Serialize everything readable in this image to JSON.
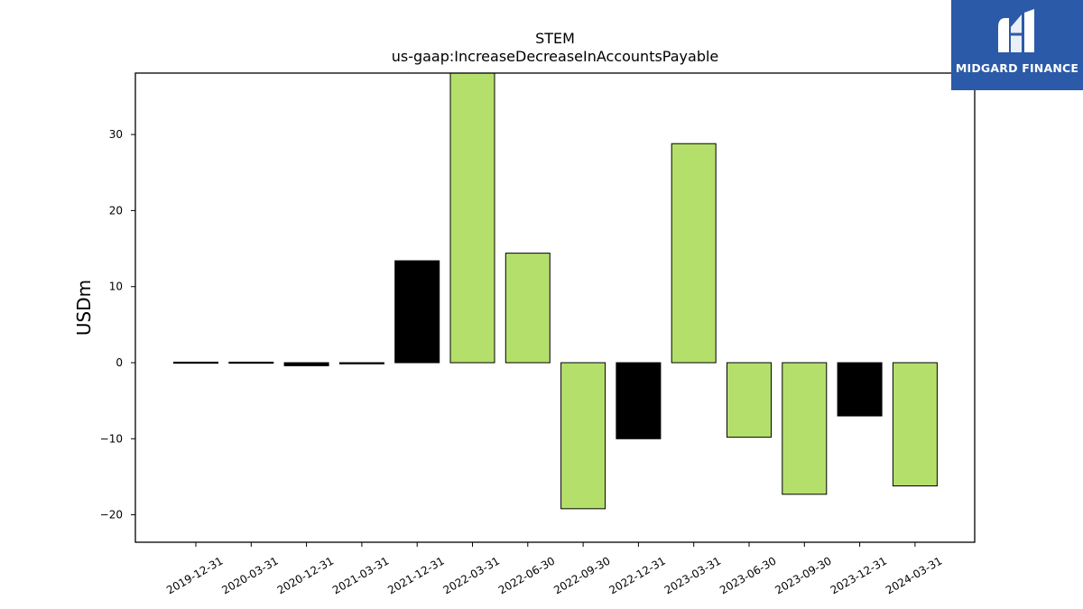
{
  "logo": {
    "text": "MIDGARD FINANCE",
    "icon": "midgard-logo-icon",
    "background": "#2b5aa8"
  },
  "chart_data": {
    "type": "bar",
    "title": "STEM",
    "subtitle": "us-gaap:IncreaseDecreaseInAccountsPayable",
    "xlabel": "",
    "ylabel": "USDm",
    "ylim": [
      -23.5,
      38
    ],
    "yticks": [
      -20,
      -10,
      0,
      10,
      20,
      30
    ],
    "ytick_labels": [
      "−20",
      "−10",
      "0",
      "10",
      "20",
      "30"
    ],
    "grid": false,
    "categories": [
      "2019-12-31",
      "2020-03-31",
      "2020-12-31",
      "2021-03-31",
      "2021-12-31",
      "2022-03-31",
      "2022-06-30",
      "2022-09-30",
      "2022-12-31",
      "2023-03-31",
      "2023-06-30",
      "2023-09-30",
      "2023-12-31",
      "2024-03-31"
    ],
    "values": [
      0.05,
      0.05,
      -0.4,
      -0.15,
      13.4,
      38.5,
      14.4,
      -19.2,
      -10.0,
      28.8,
      -9.8,
      -17.3,
      -7.0,
      -16.2
    ],
    "colors": [
      "#000000",
      "#000000",
      "#000000",
      "#000000",
      "#000000",
      "#b5df6b",
      "#b5df6b",
      "#b5df6b",
      "#000000",
      "#b5df6b",
      "#b5df6b",
      "#b5df6b",
      "#000000",
      "#b5df6b"
    ]
  }
}
